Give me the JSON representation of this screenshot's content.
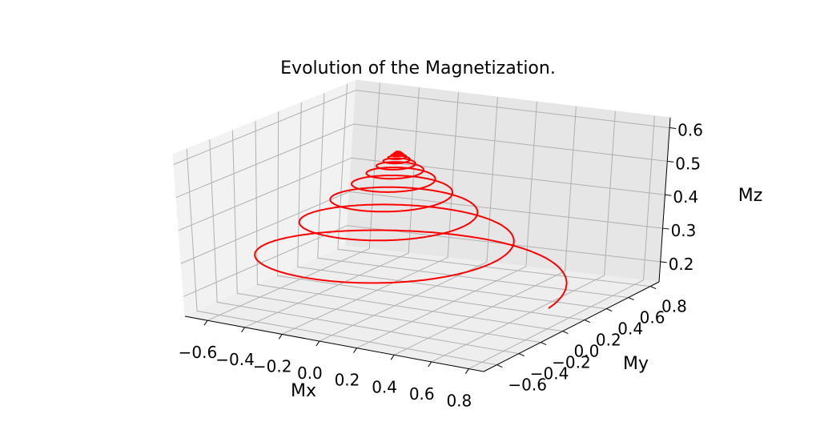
{
  "chart_data": {
    "type": "line",
    "projection": "3d",
    "title": "Evolution of the Magnetization.",
    "xlabel": "Mx",
    "ylabel": "My",
    "zlabel": "Mz",
    "x_ticks": [
      "−0.6",
      "−0.4",
      "−0.2",
      "0.0",
      "0.2",
      "0.4",
      "0.6",
      "0.8"
    ],
    "y_ticks": [
      "−0.6",
      "−0.4",
      "−0.2",
      "0.0",
      "0.2",
      "0.4",
      "0.6",
      "0.8"
    ],
    "z_ticks": [
      "0.2",
      "0.3",
      "0.4",
      "0.5",
      "0.6"
    ],
    "xlim": [
      -0.72,
      0.88
    ],
    "ylim": [
      -0.72,
      0.88
    ],
    "zlim": [
      0.14,
      0.63
    ],
    "grid": true,
    "series": [
      {
        "color": "#ff0000",
        "curve": "damped spiral",
        "center": [
          0.0,
          0.0
        ],
        "initial_point": [
          0.8,
          0.0,
          0.2
        ],
        "initial_radius": 0.8,
        "final_z": 0.6,
        "revolutions": 12
      }
    ]
  }
}
